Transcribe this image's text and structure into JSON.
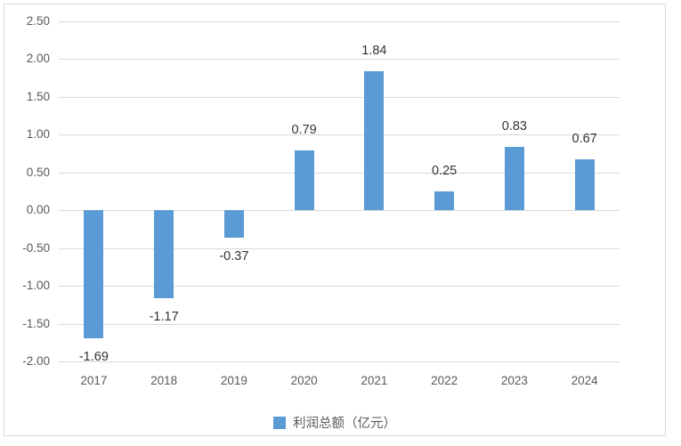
{
  "chart_data": {
    "type": "bar",
    "title": "",
    "xlabel": "",
    "ylabel": "",
    "categories": [
      "2017",
      "2018",
      "2019",
      "2020",
      "2021",
      "2022",
      "2023",
      "2024"
    ],
    "series": [
      {
        "name": "利润总额（亿元）",
        "values": [
          -1.69,
          -1.17,
          -0.37,
          0.79,
          1.84,
          0.25,
          0.83,
          0.67
        ],
        "data_labels": [
          "-1.69",
          "-1.17",
          "-0.37",
          "0.79",
          "1.84",
          "0.25",
          "0.83",
          "0.67"
        ]
      }
    ],
    "ylim": [
      -2.0,
      2.5
    ],
    "ytick_step": 0.5,
    "ytick_labels": [
      "2.50",
      "2.00",
      "1.50",
      "1.00",
      "0.50",
      "0.00",
      "-0.50",
      "-1.00",
      "-1.50",
      "-2.00"
    ],
    "grid": true,
    "legend": {
      "label": "利润总额（亿元）",
      "position": "bottom",
      "swatch": "square"
    },
    "colors": {
      "bar": "#5b9bd5",
      "gridline": "#d9d9d9",
      "axis_text": "#595959",
      "data_label": "#333333",
      "frame_border": "#d9d9d9",
      "background": "#ffffff"
    }
  }
}
